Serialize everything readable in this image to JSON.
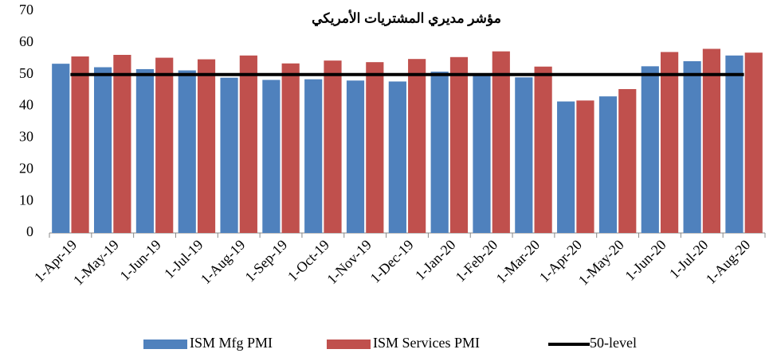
{
  "chart_data": {
    "type": "bar",
    "title": "مؤشر مديري المشتريات الأمريكي",
    "categories": [
      "1-Apr-19",
      "1-May-19",
      "1-Jun-19",
      "1-Jul-19",
      "1-Aug-19",
      "1-Sep-19",
      "1-Oct-19",
      "1-Nov-19",
      "1-Dec-19",
      "1-Jan-20",
      "1-Feb-20",
      "1-Mar-20",
      "1-Apr-20",
      "1-May-20",
      "1-Jun-20",
      "1-Jul-20",
      "1-Aug-20"
    ],
    "series": [
      {
        "name": "ISM Mfg PMI",
        "color": "#4f81bd",
        "type": "bar",
        "values": [
          53.4,
          52.3,
          51.7,
          51.3,
          49.0,
          48.3,
          48.5,
          48.1,
          47.8,
          50.9,
          50.1,
          49.1,
          41.5,
          43.1,
          52.6,
          54.2,
          56.0
        ]
      },
      {
        "name": "ISM Services PMI",
        "color": "#c0504d",
        "type": "bar",
        "values": [
          55.7,
          56.2,
          55.3,
          54.8,
          56.0,
          53.5,
          54.4,
          53.9,
          54.9,
          55.5,
          57.3,
          52.5,
          41.8,
          45.4,
          57.1,
          58.1,
          56.9
        ]
      },
      {
        "name": "50-level",
        "color": "#000000",
        "type": "line",
        "values": [
          50,
          50,
          50,
          50,
          50,
          50,
          50,
          50,
          50,
          50,
          50,
          50,
          50,
          50,
          50,
          50,
          50
        ]
      }
    ],
    "ylim": [
      0,
      70
    ],
    "yticks": [
      0,
      10,
      20,
      30,
      40,
      50,
      60,
      70
    ],
    "grid": false,
    "legend": "bottom"
  }
}
